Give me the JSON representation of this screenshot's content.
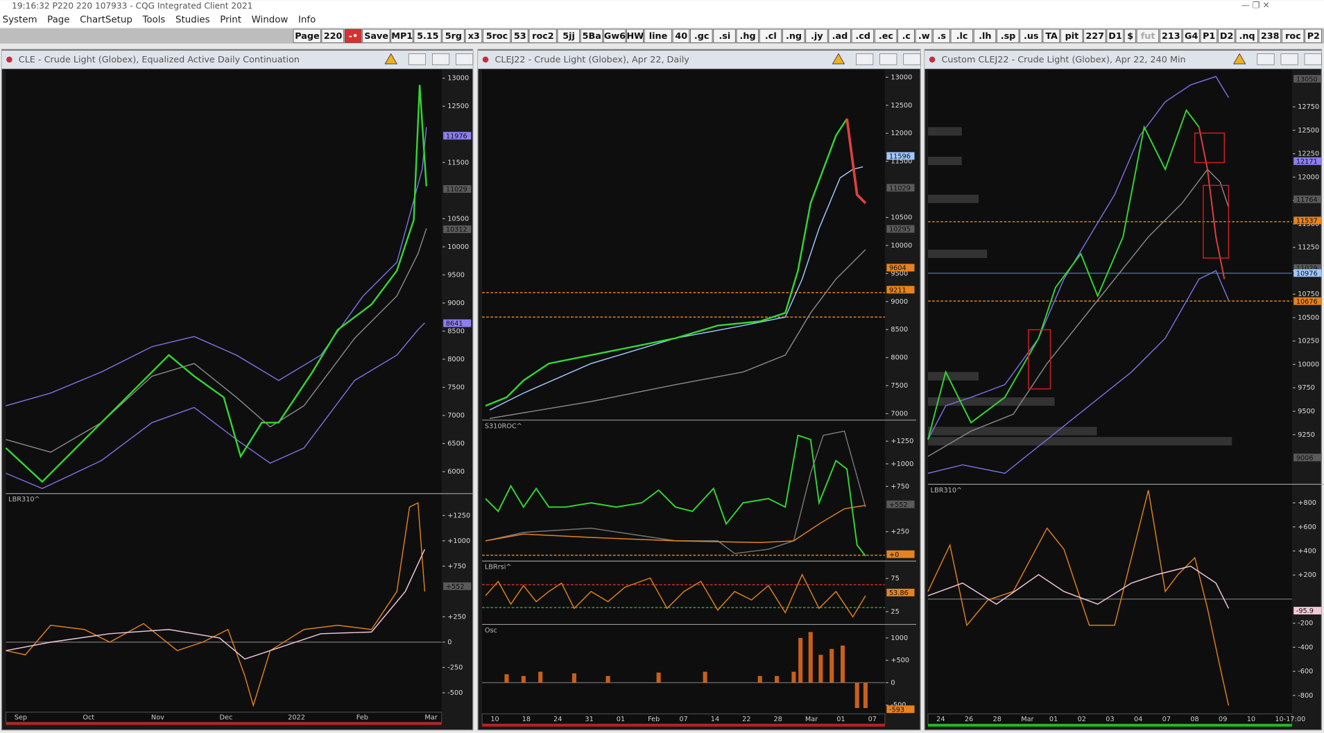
{
  "title_bar": "19:16:32   P220 220   107933 - CQG Integrated Client 2021",
  "menu": [
    "System",
    "Page",
    "ChartSetup",
    "Tools",
    "Studies",
    "Print",
    "Window",
    "Info"
  ],
  "toolbar": [
    "Page",
    "220",
    "-•",
    "Save",
    "MP1",
    "5.15",
    "5rg",
    "x3",
    "5roc",
    "53",
    "roc2",
    "5jj",
    "5Ba",
    "Gw6",
    "HW",
    "line",
    "40",
    ".gc",
    ".si",
    ".hg",
    ".cl",
    ".ng",
    ".jy",
    ".ad",
    ".cd",
    ".ec",
    ".c",
    ".w",
    ".s",
    ".lc",
    ".lh",
    ".sp",
    ".us",
    "TA",
    "pit",
    "227",
    "D1",
    "$",
    "fut",
    "213",
    "G4",
    "P1",
    "D2",
    ".nq",
    "238",
    "roc",
    "P2"
  ],
  "windows": [
    {
      "title": "CLE - Crude Light (Globex), Equalized Active Daily Continuation",
      "panes": [
        {
          "ylim": [
            5625,
            13150
          ],
          "ticks": [
            13000,
            12500,
            11500,
            10500,
            10000,
            9500,
            9000,
            8500,
            8000,
            7500,
            7000,
            6500,
            6000
          ],
          "markers": [
            {
              "value": 11976,
              "color": "#8b7ff0"
            },
            {
              "value": 11029,
              "color": "#5a5a5a"
            },
            {
              "value": 10312,
              "color": "#5a5a5a"
            },
            {
              "value": 8641,
              "color": "#8b7ff0"
            }
          ]
        },
        {
          "label": "LBR310^",
          "ylim": [
            -667,
            1458
          ],
          "ticks": [
            {
              "value": 1250,
              "label": "+1250"
            },
            {
              "value": 1000,
              "label": "+1000"
            },
            {
              "value": 750,
              "label": "+750"
            },
            {
              "value": 250,
              "label": "+250"
            },
            0,
            -250,
            -500
          ],
          "markers": [
            {
              "value": 552,
              "label": "+552",
              "color": "#5a5a5a"
            }
          ]
        }
      ],
      "time_labels": [
        "Sep",
        "Oct",
        "Nov",
        "Dec",
        "2022",
        "Feb",
        "Mar"
      ]
    },
    {
      "title": "CLEJ22 - Crude Light (Globex), Apr 22, Daily",
      "panes": [
        {
          "ylim": [
            6900,
            13134
          ],
          "ticks": [
            13000,
            12500,
            12000,
            11500,
            10500,
            10000,
            9500,
            9000,
            8500,
            8000,
            7500,
            7000
          ],
          "markers": [
            {
              "value": 11596,
              "color": "#9fc8ff"
            },
            {
              "value": 11029,
              "color": "#5a5a5a"
            },
            {
              "value": 10295,
              "color": "#5a5a5a"
            },
            {
              "value": 9604,
              "color": "#e8821e"
            },
            {
              "value": 9211,
              "color": "#e8821e"
            }
          ]
        },
        {
          "label": "S310ROC^",
          "ylim": [
            -67,
            1474
          ],
          "ticks": [
            {
              "value": 1250,
              "label": "+1250"
            },
            {
              "value": 1000,
              "label": "+1000"
            },
            {
              "value": 750,
              "label": "+750"
            },
            {
              "value": 250,
              "label": "+250"
            }
          ],
          "markers": [
            {
              "value": 552,
              "label": "+552",
              "color": "#5a5a5a"
            },
            {
              "value": 0,
              "label": "+0",
              "color": "#e8821e"
            }
          ]
        },
        {
          "label": "LBRrsi^",
          "ylim": [
            7,
            100
          ],
          "ticks": [
            75,
            25
          ],
          "markers": [
            {
              "value": 53.86,
              "color": "#e8821e"
            }
          ]
        },
        {
          "label": "Osc",
          "ylim": [
            -660,
            1283
          ],
          "ticks": [
            1000,
            {
              "value": 500,
              "label": "+500"
            },
            0,
            -500
          ],
          "markers": [
            {
              "value": -593,
              "color": "#e8821e"
            }
          ]
        }
      ],
      "time_labels": [
        "10",
        "18",
        "24",
        "31",
        "01",
        "Feb",
        "07",
        "14",
        "22",
        "28",
        "Mar",
        "01",
        "07"
      ]
    },
    {
      "title": "Custom CLEJ22 - Crude Light (Globex), Apr 22, 240 Min",
      "panes": [
        {
          "ylim": [
            8729,
            13147
          ],
          "ticks": [
            12750,
            12500,
            12250,
            12000,
            11750,
            11500,
            11250,
            11000,
            10750,
            10500,
            10250,
            10000,
            9750,
            9500,
            9250
          ],
          "markers": [
            {
              "value": 13050,
              "color": "#5a5a5a"
            },
            {
              "value": 12171,
              "color": "#8b7ff0"
            },
            {
              "value": 11764,
              "color": "#5a5a5a"
            },
            {
              "value": 11537,
              "color": "#e8821e"
            },
            {
              "value": 11029,
              "color": "#5a5a5a"
            },
            {
              "value": 10976,
              "color": "#9fc8ff"
            },
            {
              "value": 10676,
              "color": "#e8821e"
            },
            {
              "value": 9006,
              "color": "#5a5a5a"
            }
          ]
        },
        {
          "label": "LBR310^",
          "ylim": [
            -940,
            947
          ],
          "ticks": [
            {
              "value": 800,
              "label": "+800"
            },
            {
              "value": 600,
              "label": "+600"
            },
            {
              "value": 400,
              "label": "+400"
            },
            {
              "value": 200,
              "label": "+200"
            },
            -200,
            -400,
            -600,
            -800
          ],
          "markers": [
            {
              "value": -95.9,
              "color": "#f0c8d8"
            }
          ]
        }
      ],
      "time_labels": [
        "24",
        "26",
        "28",
        "Mar",
        "01",
        "02",
        "03",
        "04",
        "07",
        "08",
        "09",
        "10",
        "10-17:00"
      ]
    }
  ]
}
